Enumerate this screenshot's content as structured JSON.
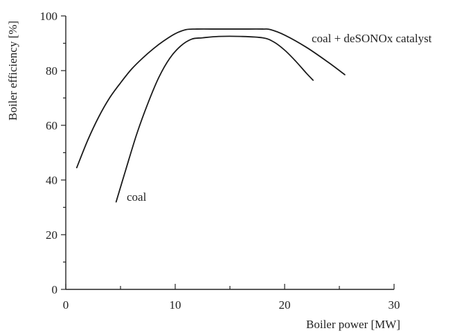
{
  "chart_data": {
    "type": "line",
    "title": "",
    "xlabel": "Boiler power [MW]",
    "ylabel": "Boiler efficiency [%]",
    "xlim": [
      0,
      30
    ],
    "ylim": [
      0,
      100
    ],
    "x_ticks": [
      0,
      10,
      20,
      30
    ],
    "x_minor_ticks": [
      5,
      15,
      25
    ],
    "y_ticks": [
      0,
      20,
      40,
      60,
      80,
      100
    ],
    "y_minor_ticks": [
      10,
      30,
      50,
      70,
      90
    ],
    "grid": false,
    "legend": "none",
    "series": [
      {
        "name": "coal + deSONOx catalyst",
        "x": [
          1.0,
          2.0,
          3.0,
          4.0,
          5.0,
          6.0,
          7.0,
          8.0,
          9.0,
          10.0,
          11.0,
          12.0,
          14.0,
          16.0,
          18.0,
          18.7,
          20.0,
          22.0,
          24.0,
          25.5
        ],
        "y": [
          44.5,
          54.5,
          63.0,
          70.0,
          75.5,
          80.5,
          84.5,
          88.0,
          91.0,
          93.5,
          95.0,
          95.2,
          95.2,
          95.2,
          95.2,
          95.0,
          93.0,
          88.5,
          83.0,
          78.5
        ]
      },
      {
        "name": "coal",
        "x": [
          4.6,
          5.5,
          6.5,
          7.5,
          8.5,
          9.5,
          10.5,
          11.5,
          12.5,
          14.0,
          16.0,
          18.0,
          19.0,
          20.0,
          21.0,
          22.0,
          22.6
        ],
        "y": [
          32.0,
          44.0,
          57.0,
          68.0,
          77.5,
          84.5,
          89.0,
          91.5,
          92.0,
          92.5,
          92.5,
          92.0,
          90.5,
          87.5,
          83.5,
          79.0,
          76.5
        ]
      }
    ]
  },
  "labels": {
    "coal": "coal",
    "coal_desonox": "coal + deSONOx catalyst"
  }
}
